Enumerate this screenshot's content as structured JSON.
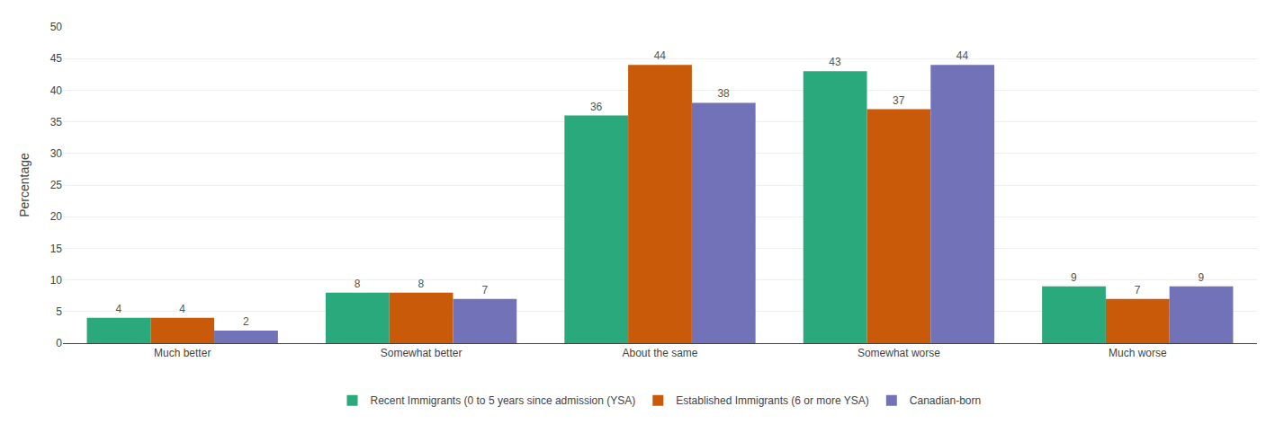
{
  "chart_data": {
    "type": "bar",
    "categories": [
      "Much better",
      "Somewhat better",
      "About the same",
      "Somewhat worse",
      "Much worse"
    ],
    "series": [
      {
        "name": "Recent Immigrants (0 to 5 years since admission (YSA)",
        "color": "#2aA97C",
        "values": [
          4,
          8,
          36,
          43,
          9
        ]
      },
      {
        "name": "Established Immigrants (6 or more YSA)",
        "color": "#C85A0A",
        "values": [
          4,
          8,
          44,
          37,
          7
        ]
      },
      {
        "name": "Canadian-born",
        "color": "#7272B8",
        "values": [
          2,
          7,
          38,
          44,
          9
        ]
      }
    ],
    "ylabel": "Percentage",
    "ylim": [
      0,
      50
    ],
    "yticks": [
      0,
      5,
      10,
      15,
      20,
      25,
      30,
      35,
      40,
      45,
      50
    ],
    "grid": true,
    "legend": "bottom",
    "data_labels": true
  }
}
